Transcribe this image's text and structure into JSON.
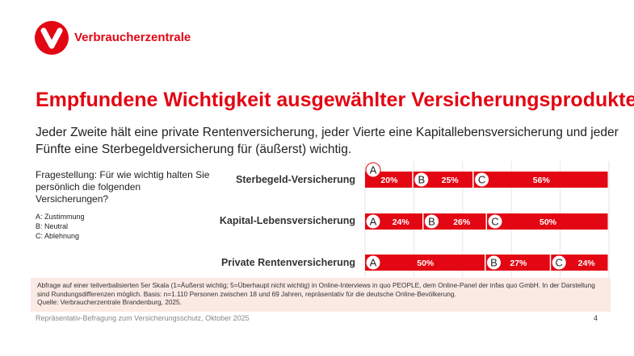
{
  "brand": {
    "name": "Verbraucherzentrale",
    "color": "#e30613"
  },
  "title": "Empfundene Wichtigkeit ausgewählter Versicherungsprodukte",
  "subtitle": "Jeder Zweite hält eine private Rentenversicherung, jeder Vierte eine Kapitallebensversicherung und jeder Fünfte eine Sterbegeldversicherung für (äußerst) wichtig.",
  "question": "Fragestellung: Für wie wichtig halten Sie persönlich die folgenden Versicherungen?",
  "legend": [
    "A: Zustimmung",
    "B: Neutral",
    "C: Ablehnung"
  ],
  "chart_data": {
    "type": "bar",
    "orientation": "horizontal-stacked",
    "categories": [
      "Sterbegeld-Versicherung",
      "Kapital-Lebensversicherung",
      "Private Rentenversicherung"
    ],
    "series": [
      {
        "name": "A",
        "values": [
          20,
          24,
          50
        ]
      },
      {
        "name": "B",
        "values": [
          25,
          26,
          27
        ]
      },
      {
        "name": "C",
        "values": [
          56,
          50,
          24
        ]
      }
    ],
    "unit": "%",
    "xlim": [
      0,
      100
    ],
    "grid": true,
    "bar_color": "#e30613"
  },
  "note": {
    "text": "Abfrage auf einer teilverbalisierten 5er Skala (1=Äußerst wichtig; 5=Überhaupt nicht wichtig) in Online-Interviews in quo PEOPLE, dem Online-Panel der infas quo GmbH. In der Darstellung sind Rundungsdifferenzen möglich. Basis: n=1.110 Personen zwischen 18 und 69 Jahren, repräsentativ für die deutsche Online-Bevölkerung.",
    "source": "Quelle: Verbraucherzentrale Brandenburg, 2025."
  },
  "footer": "Repräsentativ-Befragung zum Versicherungsschutz, Oktober 2025",
  "page_number": "4"
}
